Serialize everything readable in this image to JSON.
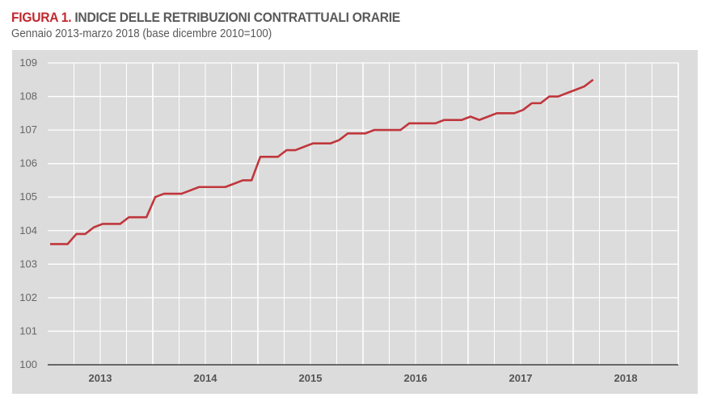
{
  "title_prefix": "FIGURA 1.",
  "title_main": "INDICE DELLE RETRIBUZIONI CONTRATTUALI ORARIE",
  "subtitle": "Gennaio 2013-marzo 2018 (base dicembre 2010=100)",
  "chart_data": {
    "type": "line",
    "title": "FIGURA 1. INDICE DELLE RETRIBUZIONI CONTRATTUALI ORARIE",
    "subtitle": "Gennaio 2013-marzo 2018 (base dicembre 2010=100)",
    "x_start": "2013-01",
    "x_end": "2018-03",
    "frequency": "monthly",
    "xlim": [
      "2013-01",
      "2018-12"
    ],
    "ylim": [
      100,
      109
    ],
    "yticks": [
      100,
      101,
      102,
      103,
      104,
      105,
      106,
      107,
      108,
      109
    ],
    "xtick_labels": [
      "2013",
      "2014",
      "2015",
      "2016",
      "2017",
      "2018"
    ],
    "grid": true,
    "line_color": "#c0363c",
    "background_color": "#dcdcdc",
    "values": [
      103.6,
      103.6,
      103.6,
      103.9,
      103.9,
      104.1,
      104.2,
      104.2,
      104.2,
      104.4,
      104.4,
      104.4,
      105.0,
      105.1,
      105.1,
      105.1,
      105.2,
      105.3,
      105.3,
      105.3,
      105.3,
      105.4,
      105.5,
      105.5,
      106.2,
      106.2,
      106.2,
      106.4,
      106.4,
      106.5,
      106.6,
      106.6,
      106.6,
      106.7,
      106.9,
      106.9,
      106.9,
      107.0,
      107.0,
      107.0,
      107.0,
      107.2,
      107.2,
      107.2,
      107.2,
      107.3,
      107.3,
      107.3,
      107.4,
      107.3,
      107.4,
      107.5,
      107.5,
      107.5,
      107.6,
      107.8,
      107.8,
      108.0,
      108.0,
      108.1,
      108.2,
      108.3,
      108.5
    ]
  }
}
